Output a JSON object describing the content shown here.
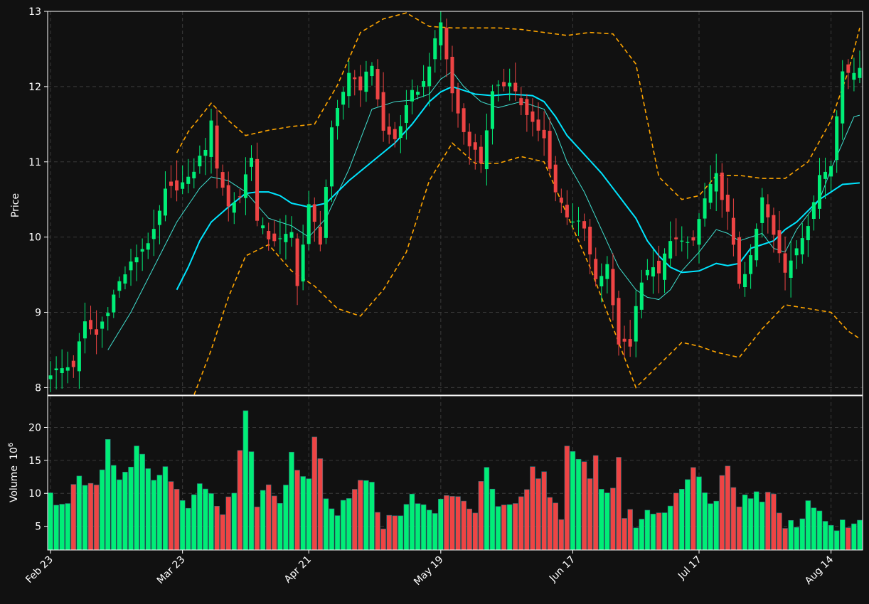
{
  "chart_data": {
    "type": "candlestick",
    "colors": {
      "background": "#111111",
      "up": "#00ee77",
      "down": "#ee4444",
      "sma_fast": "#40e0d0",
      "sma_slow": "#00e5ff",
      "bands": "#ffa500",
      "grid": "#3a3a3a",
      "frame": "#ffffff",
      "text": "#ffffff"
    },
    "price_panel": {
      "ylabel": "Price",
      "ylim": [
        7.9,
        13.0
      ],
      "yticks": [
        8,
        9,
        10,
        11,
        12,
        13
      ]
    },
    "volume_panel": {
      "ylabel": "Volume",
      "unit": "10",
      "unit_exp": "6",
      "ylim": [
        1.4,
        24.8
      ],
      "yticks": [
        5,
        10,
        15,
        20
      ]
    },
    "xaxis": {
      "count": 142,
      "ticks": [
        {
          "label": "Feb 23",
          "index": 0
        },
        {
          "label": "Mar 23",
          "index": 23
        },
        {
          "label": "Apr 21",
          "index": 45
        },
        {
          "label": "May 19",
          "index": 68
        },
        {
          "label": "Jun 17",
          "index": 91
        },
        {
          "label": "Jul 17",
          "index": 113
        },
        {
          "label": "Aug 14",
          "index": 136
        }
      ]
    },
    "anchors": {
      "close": [
        [
          0,
          8.2
        ],
        [
          4,
          8.3
        ],
        [
          6,
          8.85
        ],
        [
          8,
          8.7
        ],
        [
          12,
          9.4
        ],
        [
          15,
          9.75
        ],
        [
          18,
          10.05
        ],
        [
          20,
          10.6
        ],
        [
          24,
          10.75
        ],
        [
          27,
          11.2
        ],
        [
          28,
          11.5
        ],
        [
          29,
          10.95
        ],
        [
          31,
          10.4
        ],
        [
          33,
          10.55
        ],
        [
          35,
          11.1
        ],
        [
          36,
          10.2
        ],
        [
          38,
          10.0
        ],
        [
          40,
          9.95
        ],
        [
          42,
          10.05
        ],
        [
          43,
          9.4
        ],
        [
          45,
          10.4
        ],
        [
          47,
          9.95
        ],
        [
          49,
          11.4
        ],
        [
          52,
          12.2
        ],
        [
          54,
          12.0
        ],
        [
          56,
          12.3
        ],
        [
          58,
          11.4
        ],
        [
          60,
          11.3
        ],
        [
          63,
          11.9
        ],
        [
          65,
          12.05
        ],
        [
          68,
          12.85
        ],
        [
          70,
          11.9
        ],
        [
          72,
          11.4
        ],
        [
          75,
          11.0
        ],
        [
          77,
          11.9
        ],
        [
          80,
          12.1
        ],
        [
          83,
          11.6
        ],
        [
          86,
          11.3
        ],
        [
          88,
          10.6
        ],
        [
          90,
          10.3
        ],
        [
          93,
          10.1
        ],
        [
          95,
          9.4
        ],
        [
          97,
          9.6
        ],
        [
          99,
          8.6
        ],
        [
          101,
          8.6
        ],
        [
          102,
          9.1
        ],
        [
          104,
          9.6
        ],
        [
          106,
          9.5
        ],
        [
          108,
          10.0
        ],
        [
          110,
          9.9
        ],
        [
          112,
          9.95
        ],
        [
          114,
          10.5
        ],
        [
          116,
          10.8
        ],
        [
          118,
          10.3
        ],
        [
          120,
          9.4
        ],
        [
          122,
          9.7
        ],
        [
          124,
          10.5
        ],
        [
          126,
          10.0
        ],
        [
          128,
          9.55
        ],
        [
          130,
          9.9
        ],
        [
          132,
          10.1
        ],
        [
          134,
          10.85
        ],
        [
          136,
          11.0
        ],
        [
          138,
          12.2
        ],
        [
          140,
          12.2
        ],
        [
          141,
          12.3
        ]
      ],
      "volume": [
        [
          0,
          9.7
        ],
        [
          2,
          7.5
        ],
        [
          5,
          13.0
        ],
        [
          8,
          11.2
        ],
        [
          10,
          18.0
        ],
        [
          12,
          12.0
        ],
        [
          15,
          16.8
        ],
        [
          17,
          12.8
        ],
        [
          20,
          14.0
        ],
        [
          23,
          8.0
        ],
        [
          26,
          10.8
        ],
        [
          28,
          10.4
        ],
        [
          30,
          8.0
        ],
        [
          32,
          11.0
        ],
        [
          34,
          22.6
        ],
        [
          36,
          9.2
        ],
        [
          38,
          12.0
        ],
        [
          40,
          8.6
        ],
        [
          42,
          15.3
        ],
        [
          45,
          12.0
        ],
        [
          46,
          18.3
        ],
        [
          48,
          9.8
        ],
        [
          50,
          7.5
        ],
        [
          53,
          11.3
        ],
        [
          56,
          11.1
        ],
        [
          58,
          5.5
        ],
        [
          61,
          5.9
        ],
        [
          63,
          9.8
        ],
        [
          66,
          7.0
        ],
        [
          68,
          8.8
        ],
        [
          70,
          8.6
        ],
        [
          72,
          9.7
        ],
        [
          74,
          7.2
        ],
        [
          76,
          14.2
        ],
        [
          78,
          7.0
        ],
        [
          80,
          7.4
        ],
        [
          82,
          8.6
        ],
        [
          84,
          13.5
        ],
        [
          86,
          12.8
        ],
        [
          88,
          8.5
        ],
        [
          89,
          5.0
        ],
        [
          90,
          16.2
        ],
        [
          92,
          14.8
        ],
        [
          94,
          13.4
        ],
        [
          95,
          15.3
        ],
        [
          96,
          10.3
        ],
        [
          98,
          11.2
        ],
        [
          99,
          15.3
        ],
        [
          100,
          6.8
        ],
        [
          102,
          5.8
        ],
        [
          105,
          7.1
        ],
        [
          108,
          8.4
        ],
        [
          110,
          11.9
        ],
        [
          112,
          13.8
        ],
        [
          114,
          9.4
        ],
        [
          116,
          9.9
        ],
        [
          118,
          14.2
        ],
        [
          120,
          9.0
        ],
        [
          121,
          10.9
        ],
        [
          124,
          9.6
        ],
        [
          126,
          9.4
        ],
        [
          128,
          5.8
        ],
        [
          130,
          5.0
        ],
        [
          132,
          9.8
        ],
        [
          134,
          6.4
        ],
        [
          136,
          5.8
        ],
        [
          138,
          4.9
        ]
      ],
      "bands_upper": [
        [
          22,
          11.12
        ],
        [
          24,
          11.4
        ],
        [
          28,
          11.78
        ],
        [
          31,
          11.55
        ],
        [
          34,
          11.35
        ],
        [
          38,
          11.42
        ],
        [
          42,
          11.47
        ],
        [
          46,
          11.5
        ],
        [
          50,
          12.02
        ],
        [
          54,
          12.72
        ],
        [
          58,
          12.9
        ],
        [
          62,
          12.98
        ],
        [
          66,
          12.8
        ],
        [
          70,
          12.78
        ],
        [
          74,
          12.78
        ],
        [
          78,
          12.78
        ],
        [
          82,
          12.76
        ],
        [
          86,
          12.72
        ],
        [
          90,
          12.68
        ],
        [
          94,
          12.72
        ],
        [
          98,
          12.7
        ],
        [
          102,
          12.3
        ],
        [
          106,
          10.8
        ],
        [
          110,
          10.5
        ],
        [
          113,
          10.55
        ],
        [
          116,
          10.82
        ],
        [
          120,
          10.82
        ],
        [
          124,
          10.78
        ],
        [
          128,
          10.78
        ],
        [
          132,
          11.0
        ],
        [
          136,
          11.55
        ],
        [
          139,
          12.2
        ],
        [
          141,
          12.78
        ]
      ],
      "bands_lower": [
        [
          22,
          7.5
        ],
        [
          24,
          7.7
        ],
        [
          28,
          8.5
        ],
        [
          31,
          9.2
        ],
        [
          34,
          9.75
        ],
        [
          38,
          9.9
        ],
        [
          42,
          9.55
        ],
        [
          46,
          9.35
        ],
        [
          50,
          9.05
        ],
        [
          54,
          8.95
        ],
        [
          58,
          9.3
        ],
        [
          62,
          9.8
        ],
        [
          66,
          10.75
        ],
        [
          70,
          11.25
        ],
        [
          74,
          10.98
        ],
        [
          78,
          10.98
        ],
        [
          82,
          11.07
        ],
        [
          86,
          11.0
        ],
        [
          90,
          10.3
        ],
        [
          94,
          9.6
        ],
        [
          98,
          8.8
        ],
        [
          102,
          8.0
        ],
        [
          106,
          8.3
        ],
        [
          110,
          8.6
        ],
        [
          113,
          8.55
        ],
        [
          116,
          8.47
        ],
        [
          120,
          8.4
        ],
        [
          124,
          8.78
        ],
        [
          128,
          9.1
        ],
        [
          132,
          9.05
        ],
        [
          136,
          9.0
        ],
        [
          139,
          8.75
        ],
        [
          141,
          8.65
        ]
      ],
      "sma_fast": [
        [
          10,
          8.5
        ],
        [
          14,
          9.0
        ],
        [
          18,
          9.6
        ],
        [
          22,
          10.2
        ],
        [
          26,
          10.65
        ],
        [
          28,
          10.8
        ],
        [
          31,
          10.75
        ],
        [
          34,
          10.6
        ],
        [
          38,
          10.25
        ],
        [
          42,
          10.15
        ],
        [
          45,
          10.0
        ],
        [
          48,
          10.25
        ],
        [
          52,
          10.9
        ],
        [
          56,
          11.7
        ],
        [
          60,
          11.8
        ],
        [
          63,
          11.82
        ],
        [
          66,
          11.9
        ],
        [
          68,
          12.1
        ],
        [
          70,
          12.2
        ],
        [
          72,
          12.0
        ],
        [
          75,
          11.8
        ],
        [
          78,
          11.72
        ],
        [
          82,
          11.8
        ],
        [
          86,
          11.7
        ],
        [
          88,
          11.4
        ],
        [
          90,
          11.0
        ],
        [
          93,
          10.6
        ],
        [
          96,
          10.1
        ],
        [
          99,
          9.6
        ],
        [
          102,
          9.3
        ],
        [
          104,
          9.2
        ],
        [
          106,
          9.17
        ],
        [
          108,
          9.3
        ],
        [
          110,
          9.55
        ],
        [
          113,
          9.8
        ],
        [
          116,
          10.1
        ],
        [
          118,
          10.05
        ],
        [
          120,
          9.95
        ],
        [
          122,
          10.0
        ],
        [
          124,
          10.05
        ],
        [
          126,
          9.85
        ],
        [
          128,
          9.8
        ],
        [
          130,
          10.1
        ],
        [
          132,
          10.3
        ],
        [
          134,
          10.5
        ],
        [
          136,
          10.9
        ],
        [
          138,
          11.25
        ],
        [
          140,
          11.6
        ],
        [
          141,
          11.62
        ]
      ],
      "sma_slow": [
        [
          22,
          9.3
        ],
        [
          24,
          9.6
        ],
        [
          26,
          9.95
        ],
        [
          28,
          10.2
        ],
        [
          31,
          10.4
        ],
        [
          34,
          10.58
        ],
        [
          36,
          10.6
        ],
        [
          38,
          10.6
        ],
        [
          40,
          10.55
        ],
        [
          42,
          10.45
        ],
        [
          45,
          10.4
        ],
        [
          48,
          10.45
        ],
        [
          52,
          10.75
        ],
        [
          56,
          11.0
        ],
        [
          60,
          11.25
        ],
        [
          63,
          11.5
        ],
        [
          66,
          11.8
        ],
        [
          68,
          11.93
        ],
        [
          70,
          12.0
        ],
        [
          72,
          11.95
        ],
        [
          74,
          11.9
        ],
        [
          77,
          11.88
        ],
        [
          80,
          11.9
        ],
        [
          84,
          11.88
        ],
        [
          86,
          11.8
        ],
        [
          88,
          11.6
        ],
        [
          90,
          11.35
        ],
        [
          93,
          11.1
        ],
        [
          96,
          10.85
        ],
        [
          99,
          10.55
        ],
        [
          102,
          10.25
        ],
        [
          104,
          9.95
        ],
        [
          106,
          9.75
        ],
        [
          108,
          9.6
        ],
        [
          110,
          9.53
        ],
        [
          113,
          9.55
        ],
        [
          116,
          9.65
        ],
        [
          118,
          9.62
        ],
        [
          120,
          9.65
        ],
        [
          122,
          9.85
        ],
        [
          124,
          9.9
        ],
        [
          126,
          9.95
        ],
        [
          128,
          10.1
        ],
        [
          130,
          10.2
        ],
        [
          132,
          10.35
        ],
        [
          134,
          10.5
        ],
        [
          136,
          10.6
        ],
        [
          138,
          10.7
        ],
        [
          141,
          10.72
        ]
      ]
    }
  }
}
